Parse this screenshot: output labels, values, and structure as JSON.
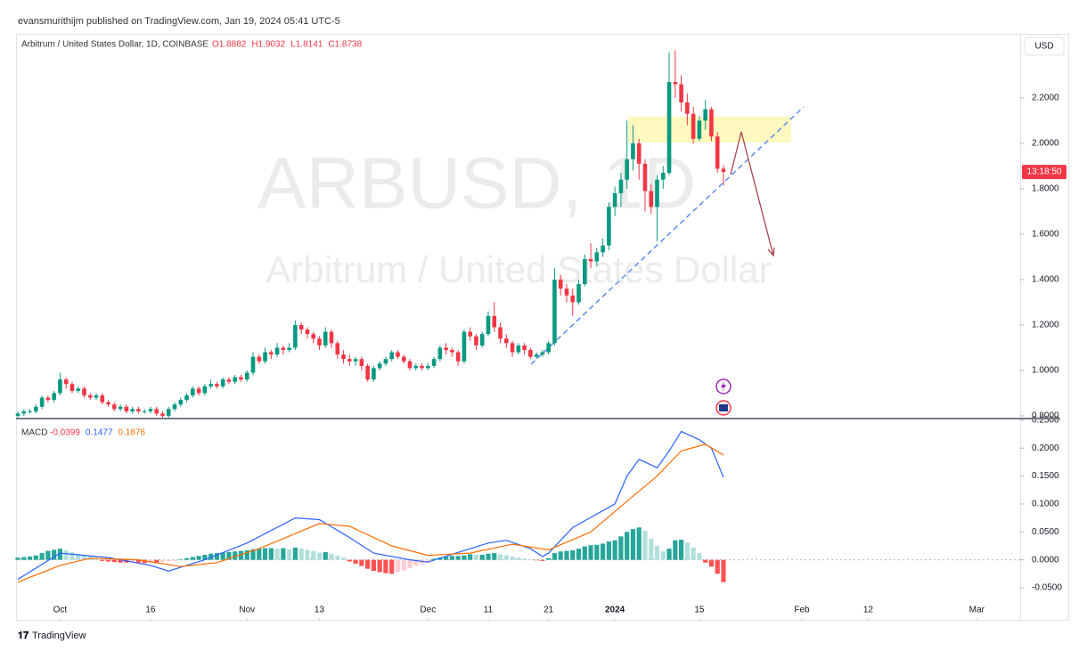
{
  "header": "evansmurithijm published on TradingView.com, Jan 19, 2024 05:41 UTC-5",
  "footer": "TradingView",
  "chart_data": {
    "type": "candlestick",
    "title": "Arbitrum / United States Dollar, 1D, COINBASE",
    "ohlc_legend": [
      "O1.8882",
      "H1.9032",
      "L1.8141",
      "C1.8738"
    ],
    "watermark": [
      "ARBUSD, 1D",
      "Arbitrum / United States Dollar"
    ],
    "currency": "USD",
    "countdown": "13:18:50",
    "up_color": "#089981",
    "down_color": "#f23645",
    "ohlc": [
      [
        0.8,
        0.82,
        0.79,
        0.81
      ],
      [
        0.81,
        0.83,
        0.8,
        0.82
      ],
      [
        0.82,
        0.83,
        0.81,
        0.82
      ],
      [
        0.82,
        0.85,
        0.81,
        0.84
      ],
      [
        0.84,
        0.89,
        0.83,
        0.88
      ],
      [
        0.88,
        0.89,
        0.86,
        0.87
      ],
      [
        0.87,
        0.91,
        0.86,
        0.9
      ],
      [
        0.9,
        0.99,
        0.89,
        0.96
      ],
      [
        0.96,
        0.97,
        0.92,
        0.94
      ],
      [
        0.94,
        0.95,
        0.9,
        0.91
      ],
      [
        0.91,
        0.93,
        0.9,
        0.92
      ],
      [
        0.92,
        0.93,
        0.88,
        0.89
      ],
      [
        0.89,
        0.9,
        0.87,
        0.88
      ],
      [
        0.88,
        0.9,
        0.87,
        0.89
      ],
      [
        0.89,
        0.9,
        0.85,
        0.86
      ],
      [
        0.86,
        0.87,
        0.84,
        0.85
      ],
      [
        0.85,
        0.86,
        0.82,
        0.83
      ],
      [
        0.83,
        0.85,
        0.82,
        0.84
      ],
      [
        0.84,
        0.85,
        0.81,
        0.82
      ],
      [
        0.82,
        0.84,
        0.81,
        0.83
      ],
      [
        0.83,
        0.84,
        0.81,
        0.82
      ],
      [
        0.82,
        0.83,
        0.81,
        0.82
      ],
      [
        0.82,
        0.84,
        0.81,
        0.83
      ],
      [
        0.83,
        0.84,
        0.8,
        0.81
      ],
      [
        0.81,
        0.82,
        0.79,
        0.8
      ],
      [
        0.8,
        0.84,
        0.79,
        0.83
      ],
      [
        0.83,
        0.86,
        0.82,
        0.85
      ],
      [
        0.85,
        0.88,
        0.84,
        0.87
      ],
      [
        0.87,
        0.9,
        0.86,
        0.89
      ],
      [
        0.89,
        0.93,
        0.88,
        0.92
      ],
      [
        0.92,
        0.93,
        0.89,
        0.9
      ],
      [
        0.9,
        0.94,
        0.89,
        0.93
      ],
      [
        0.93,
        0.96,
        0.92,
        0.94
      ],
      [
        0.94,
        0.95,
        0.92,
        0.93
      ],
      [
        0.93,
        0.97,
        0.92,
        0.96
      ],
      [
        0.96,
        0.97,
        0.94,
        0.95
      ],
      [
        0.95,
        0.98,
        0.94,
        0.97
      ],
      [
        0.97,
        0.98,
        0.95,
        0.96
      ],
      [
        0.96,
        1.0,
        0.95,
        0.99
      ],
      [
        0.99,
        1.08,
        0.98,
        1.06
      ],
      [
        1.06,
        1.07,
        1.03,
        1.04
      ],
      [
        1.04,
        1.1,
        1.03,
        1.08
      ],
      [
        1.08,
        1.09,
        1.05,
        1.07
      ],
      [
        1.07,
        1.12,
        1.06,
        1.1
      ],
      [
        1.1,
        1.11,
        1.07,
        1.09
      ],
      [
        1.09,
        1.12,
        1.08,
        1.1
      ],
      [
        1.1,
        1.22,
        1.09,
        1.2
      ],
      [
        1.2,
        1.21,
        1.16,
        1.18
      ],
      [
        1.18,
        1.19,
        1.14,
        1.16
      ],
      [
        1.16,
        1.17,
        1.12,
        1.14
      ],
      [
        1.14,
        1.15,
        1.09,
        1.11
      ],
      [
        1.11,
        1.19,
        1.1,
        1.17
      ],
      [
        1.17,
        1.18,
        1.1,
        1.12
      ],
      [
        1.12,
        1.13,
        1.05,
        1.07
      ],
      [
        1.07,
        1.09,
        1.03,
        1.05
      ],
      [
        1.05,
        1.07,
        1.02,
        1.04
      ],
      [
        1.04,
        1.06,
        1.02,
        1.05
      ],
      [
        1.05,
        1.06,
        1.0,
        1.02
      ],
      [
        1.02,
        1.03,
        0.95,
        0.96
      ],
      [
        0.96,
        1.02,
        0.95,
        1.01
      ],
      [
        1.01,
        1.04,
        1.0,
        1.03
      ],
      [
        1.03,
        1.06,
        1.02,
        1.05
      ],
      [
        1.05,
        1.09,
        1.04,
        1.08
      ],
      [
        1.08,
        1.09,
        1.05,
        1.06
      ],
      [
        1.06,
        1.07,
        1.03,
        1.04
      ],
      [
        1.04,
        1.05,
        1.0,
        1.01
      ],
      [
        1.01,
        1.03,
        1.0,
        1.02
      ],
      [
        1.02,
        1.03,
        1.0,
        1.01
      ],
      [
        1.01,
        1.03,
        1.0,
        1.02
      ],
      [
        1.02,
        1.06,
        1.01,
        1.05
      ],
      [
        1.05,
        1.11,
        1.04,
        1.1
      ],
      [
        1.1,
        1.12,
        1.07,
        1.09
      ],
      [
        1.09,
        1.1,
        1.06,
        1.08
      ],
      [
        1.08,
        1.09,
        1.02,
        1.04
      ],
      [
        1.04,
        1.18,
        1.03,
        1.17
      ],
      [
        1.17,
        1.19,
        1.13,
        1.15
      ],
      [
        1.15,
        1.16,
        1.09,
        1.11
      ],
      [
        1.11,
        1.17,
        1.1,
        1.16
      ],
      [
        1.16,
        1.26,
        1.15,
        1.24
      ],
      [
        1.24,
        1.3,
        1.17,
        1.19
      ],
      [
        1.19,
        1.21,
        1.12,
        1.14
      ],
      [
        1.14,
        1.16,
        1.1,
        1.12
      ],
      [
        1.12,
        1.13,
        1.06,
        1.08
      ],
      [
        1.08,
        1.12,
        1.07,
        1.11
      ],
      [
        1.11,
        1.12,
        1.07,
        1.09
      ],
      [
        1.09,
        1.1,
        1.05,
        1.06
      ],
      [
        1.06,
        1.08,
        1.05,
        1.07
      ],
      [
        1.07,
        1.09,
        1.06,
        1.08
      ],
      [
        1.08,
        1.13,
        1.07,
        1.12
      ],
      [
        1.12,
        1.45,
        1.11,
        1.4
      ],
      [
        1.4,
        1.42,
        1.33,
        1.36
      ],
      [
        1.36,
        1.38,
        1.3,
        1.33
      ],
      [
        1.33,
        1.36,
        1.24,
        1.3
      ],
      [
        1.3,
        1.4,
        1.29,
        1.38
      ],
      [
        1.38,
        1.51,
        1.37,
        1.49
      ],
      [
        1.49,
        1.56,
        1.45,
        1.48
      ],
      [
        1.48,
        1.54,
        1.46,
        1.52
      ],
      [
        1.52,
        1.58,
        1.5,
        1.55
      ],
      [
        1.55,
        1.74,
        1.53,
        1.72
      ],
      [
        1.72,
        1.81,
        1.68,
        1.78
      ],
      [
        1.78,
        1.87,
        1.72,
        1.84
      ],
      [
        1.84,
        2.1,
        1.8,
        1.93
      ],
      [
        1.93,
        2.08,
        1.88,
        2.0
      ],
      [
        2.0,
        2.02,
        1.84,
        1.91
      ],
      [
        1.91,
        1.93,
        1.7,
        1.79
      ],
      [
        1.79,
        1.82,
        1.69,
        1.72
      ],
      [
        1.72,
        1.86,
        1.57,
        1.84
      ],
      [
        1.84,
        1.9,
        1.8,
        1.87
      ],
      [
        1.87,
        2.4,
        1.86,
        2.27
      ],
      [
        2.27,
        2.41,
        2.2,
        2.26
      ],
      [
        2.26,
        2.3,
        2.14,
        2.18
      ],
      [
        2.18,
        2.22,
        2.08,
        2.13
      ],
      [
        2.13,
        2.16,
        2.0,
        2.02
      ],
      [
        2.02,
        2.12,
        2.01,
        2.1
      ],
      [
        2.1,
        2.19,
        2.06,
        2.15
      ],
      [
        2.15,
        2.16,
        2.01,
        2.03
      ],
      [
        2.03,
        2.05,
        1.87,
        1.888
      ],
      [
        1.8882,
        1.9032,
        1.8141,
        1.8738
      ]
    ],
    "xlim": [
      -0.3,
      166.2
    ],
    "xticks": [
      {
        "value": 7,
        "label": "Oct"
      },
      {
        "value": 22,
        "label": "16"
      },
      {
        "value": 38,
        "label": "Nov"
      },
      {
        "value": 50,
        "label": "13"
      },
      {
        "value": 68,
        "label": "Dec"
      },
      {
        "value": 78,
        "label": "11"
      },
      {
        "value": 88,
        "label": "21"
      },
      {
        "value": 99,
        "label": "2024"
      },
      {
        "value": 113,
        "label": "15"
      },
      {
        "value": 130,
        "label": "Feb"
      },
      {
        "value": 141,
        "label": "12"
      },
      {
        "value": 159,
        "label": "Mar"
      }
    ],
    "ylim": [
      0.788,
      2.482
    ],
    "yticks": [
      {
        "value": 0.8,
        "label": "0.8000"
      },
      {
        "value": 1.0,
        "label": "1.0000"
      },
      {
        "value": 1.2,
        "label": "1.2000"
      },
      {
        "value": 1.4,
        "label": "1.4000"
      },
      {
        "value": 1.6,
        "label": "1.6000"
      },
      {
        "value": 1.8,
        "label": "1.8000"
      },
      {
        "value": 2.0,
        "label": "2.0000"
      },
      {
        "value": 2.2,
        "label": "2.2000"
      }
    ],
    "macd": {
      "title": "MACD",
      "legend_values": [
        -0.0399,
        0.1477,
        0.1876
      ],
      "ylim": [
        -0.109,
        0.253
      ],
      "yticks": [
        {
          "value": -0.05,
          "label": "-0.0500"
        },
        {
          "value": 0,
          "label": "0.0000"
        },
        {
          "value": 0.05,
          "label": "0.0500"
        },
        {
          "value": 0.1,
          "label": "0.1000"
        },
        {
          "value": 0.15,
          "label": "0.1500"
        },
        {
          "value": 0.2,
          "label": "0.2000"
        },
        {
          "value": 0.25,
          "label": "0.2500"
        }
      ],
      "zero_line": true,
      "histogram_colors": [
        "#26a69a",
        "#b2dfdb",
        "#ff5252",
        "#ffcdd2"
      ],
      "histogram": [
        0.004,
        0.005,
        0.006,
        0.008,
        0.012,
        0.016,
        0.018,
        0.02,
        0.017,
        0.014,
        0.011,
        0.008,
        0.006,
        0.003,
        -0.002,
        -0.003,
        -0.004,
        -0.005,
        -0.005,
        -0.004,
        -0.005,
        -0.006,
        -0.005,
        -0.006,
        -0.004,
        -0.003,
        -0.002,
        0.001,
        0.003,
        0.005,
        0.007,
        0.009,
        0.011,
        0.012,
        0.013,
        0.014,
        0.015,
        0.016,
        0.017,
        0.019,
        0.02,
        0.021,
        0.021,
        0.02,
        0.021,
        0.019,
        0.022,
        0.02,
        0.018,
        0.016,
        0.013,
        0.014,
        0.011,
        0.007,
        0.004,
        -0.003,
        -0.007,
        -0.011,
        -0.016,
        -0.02,
        -0.022,
        -0.024,
        -0.025,
        -0.022,
        -0.019,
        -0.015,
        -0.011,
        -0.008,
        -0.005,
        0.002,
        0.004,
        0.006,
        0.007,
        0.007,
        0.008,
        0.01,
        0.009,
        0.009,
        0.011,
        0.012,
        0.01,
        0.008,
        0.006,
        0.004,
        0.002,
        0.001,
        -0.001,
        -0.002,
        0.003,
        0.012,
        0.015,
        0.016,
        0.017,
        0.02,
        0.024,
        0.026,
        0.027,
        0.029,
        0.033,
        0.035,
        0.042,
        0.05,
        0.055,
        0.058,
        0.052,
        0.038,
        0.025,
        0.015,
        0.02,
        0.035,
        0.036,
        0.031,
        0.022,
        0.012,
        -0.005,
        -0.012,
        -0.025,
        -0.0399
      ],
      "series": [
        {
          "color": "#2962ff",
          "x": [
            0,
            7,
            15,
            22,
            25,
            31,
            38,
            46,
            50,
            55,
            59,
            65,
            68,
            72,
            78,
            81,
            85,
            87,
            88,
            92,
            95,
            99,
            101,
            103,
            106,
            108,
            110,
            113,
            115,
            117
          ],
          "values": [
            -0.035,
            0.012,
            0.004,
            -0.01,
            -0.02,
            0.0,
            0.03,
            0.075,
            0.072,
            0.04,
            0.012,
            0.0,
            -0.004,
            0.01,
            0.03,
            0.035,
            0.02,
            0.006,
            0.012,
            0.058,
            0.076,
            0.1,
            0.15,
            0.18,
            0.165,
            0.195,
            0.23,
            0.215,
            0.2,
            0.1477
          ]
        },
        {
          "color": "#ff6d00",
          "x": [
            0,
            7,
            12,
            20,
            27,
            33,
            40,
            50,
            55,
            62,
            68,
            75,
            82,
            88,
            95,
            101,
            106,
            110,
            114,
            117
          ],
          "values": [
            -0.04,
            -0.01,
            0.003,
            0.0,
            -0.012,
            -0.005,
            0.02,
            0.065,
            0.06,
            0.025,
            0.008,
            0.012,
            0.028,
            0.018,
            0.05,
            0.105,
            0.15,
            0.195,
            0.207,
            0.1876
          ]
        }
      ]
    }
  }
}
